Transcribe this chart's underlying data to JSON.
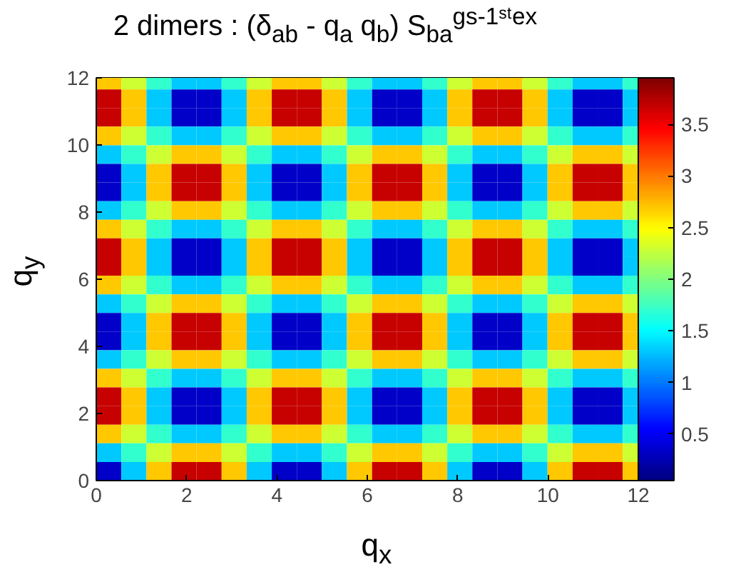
{
  "chart_data": {
    "type": "heatmap",
    "title": "2 dimers : (δ$_{ab}$ - q$_{a}$ q$_{b}$) S$_{ba}$$^{gs-1ˢᵗex}$",
    "xlabel": "q$_{x}$",
    "ylabel": "q$_{y}$",
    "x": [
      0.278,
      0.833,
      1.388,
      1.943,
      2.498,
      3.053,
      3.608,
      4.163,
      4.718,
      5.273,
      5.828,
      6.383,
      6.938,
      7.493,
      8.048,
      8.603,
      9.158,
      9.713,
      10.268,
      10.823,
      11.378,
      11.933
    ],
    "y": [
      11.933,
      11.378,
      10.823,
      10.268,
      9.713,
      9.158,
      8.603,
      8.048,
      7.493,
      6.938,
      6.383,
      5.828,
      5.273,
      4.718,
      4.163,
      3.608,
      3.053,
      2.498,
      1.943,
      1.388,
      0.833,
      0.278
    ],
    "cells": [
      [
        2.69,
        2.29,
        1.71,
        1.31,
        1.31,
        1.71,
        2.29,
        2.69,
        2.69,
        2.29,
        1.71,
        1.31,
        1.31,
        1.71,
        2.29,
        2.69,
        2.69,
        2.29,
        1.71,
        1.31,
        1.31,
        1.71
      ],
      [
        3.67,
        2.69,
        1.31,
        0.33,
        0.33,
        1.31,
        2.69,
        3.67,
        3.67,
        2.69,
        1.31,
        0.33,
        0.33,
        1.31,
        2.69,
        3.67,
        3.67,
        2.69,
        1.31,
        0.33,
        0.33,
        1.31
      ],
      [
        3.67,
        2.69,
        1.31,
        0.33,
        0.33,
        1.31,
        2.69,
        3.67,
        3.67,
        2.69,
        1.31,
        0.33,
        0.33,
        1.31,
        2.69,
        3.67,
        3.67,
        2.69,
        1.31,
        0.33,
        0.33,
        1.31
      ],
      [
        2.69,
        2.29,
        1.71,
        1.31,
        1.31,
        1.71,
        2.29,
        2.69,
        2.69,
        2.29,
        1.71,
        1.31,
        1.31,
        1.71,
        2.29,
        2.69,
        2.69,
        2.29,
        1.71,
        1.31,
        1.31,
        1.71
      ],
      [
        1.31,
        1.71,
        2.29,
        2.69,
        2.69,
        2.29,
        1.71,
        1.31,
        1.31,
        1.71,
        2.29,
        2.69,
        2.69,
        2.29,
        1.71,
        1.31,
        1.31,
        1.71,
        2.29,
        2.69,
        2.69,
        2.29
      ],
      [
        0.33,
        1.31,
        2.69,
        3.67,
        3.67,
        2.69,
        1.31,
        0.33,
        0.33,
        1.31,
        2.69,
        3.67,
        3.67,
        2.69,
        1.31,
        0.33,
        0.33,
        1.31,
        2.69,
        3.67,
        3.67,
        2.69
      ],
      [
        0.33,
        1.31,
        2.69,
        3.67,
        3.67,
        2.69,
        1.31,
        0.33,
        0.33,
        1.31,
        2.69,
        3.67,
        3.67,
        2.69,
        1.31,
        0.33,
        0.33,
        1.31,
        2.69,
        3.67,
        3.67,
        2.69
      ],
      [
        1.31,
        1.71,
        2.29,
        2.69,
        2.69,
        2.29,
        1.71,
        1.31,
        1.31,
        1.71,
        2.29,
        2.69,
        2.69,
        2.29,
        1.71,
        1.31,
        1.31,
        1.71,
        2.29,
        2.69,
        2.69,
        2.29
      ],
      [
        2.69,
        2.29,
        1.71,
        1.31,
        1.31,
        1.71,
        2.29,
        2.69,
        2.69,
        2.29,
        1.71,
        1.31,
        1.31,
        1.71,
        2.29,
        2.69,
        2.69,
        2.29,
        1.71,
        1.31,
        1.31,
        1.71
      ],
      [
        3.67,
        2.69,
        1.31,
        0.33,
        0.33,
        1.31,
        2.69,
        3.67,
        3.67,
        2.69,
        1.31,
        0.33,
        0.33,
        1.31,
        2.69,
        3.67,
        3.67,
        2.69,
        1.31,
        0.33,
        0.33,
        1.31
      ],
      [
        3.67,
        2.69,
        1.31,
        0.33,
        0.33,
        1.31,
        2.69,
        3.67,
        3.67,
        2.69,
        1.31,
        0.33,
        0.33,
        1.31,
        2.69,
        3.67,
        3.67,
        2.69,
        1.31,
        0.33,
        0.33,
        1.31
      ],
      [
        2.69,
        2.29,
        1.71,
        1.31,
        1.31,
        1.71,
        2.29,
        2.69,
        2.69,
        2.29,
        1.71,
        1.31,
        1.31,
        1.71,
        2.29,
        2.69,
        2.69,
        2.29,
        1.71,
        1.31,
        1.31,
        1.71
      ],
      [
        1.31,
        1.71,
        2.29,
        2.69,
        2.69,
        2.29,
        1.71,
        1.31,
        1.31,
        1.71,
        2.29,
        2.69,
        2.69,
        2.29,
        1.71,
        1.31,
        1.31,
        1.71,
        2.29,
        2.69,
        2.69,
        2.29
      ],
      [
        0.33,
        1.31,
        2.69,
        3.67,
        3.67,
        2.69,
        1.31,
        0.33,
        0.33,
        1.31,
        2.69,
        3.67,
        3.67,
        2.69,
        1.31,
        0.33,
        0.33,
        1.31,
        2.69,
        3.67,
        3.67,
        2.69
      ],
      [
        0.33,
        1.31,
        2.69,
        3.67,
        3.67,
        2.69,
        1.31,
        0.33,
        0.33,
        1.31,
        2.69,
        3.67,
        3.67,
        2.69,
        1.31,
        0.33,
        0.33,
        1.31,
        2.69,
        3.67,
        3.67,
        2.69
      ],
      [
        1.31,
        1.71,
        2.29,
        2.69,
        2.69,
        2.29,
        1.71,
        1.31,
        1.31,
        1.71,
        2.29,
        2.69,
        2.69,
        2.29,
        1.71,
        1.31,
        1.31,
        1.71,
        2.29,
        2.69,
        2.69,
        2.29
      ],
      [
        2.69,
        2.29,
        1.71,
        1.31,
        1.31,
        1.71,
        2.29,
        2.69,
        2.69,
        2.29,
        1.71,
        1.31,
        1.31,
        1.71,
        2.29,
        2.69,
        2.69,
        2.29,
        1.71,
        1.31,
        1.31,
        1.71
      ],
      [
        3.67,
        2.69,
        1.31,
        0.33,
        0.33,
        1.31,
        2.69,
        3.67,
        3.67,
        2.69,
        1.31,
        0.33,
        0.33,
        1.31,
        2.69,
        3.67,
        3.67,
        2.69,
        1.31,
        0.33,
        0.33,
        1.31
      ],
      [
        3.67,
        2.69,
        1.31,
        0.33,
        0.33,
        1.31,
        2.69,
        3.67,
        3.67,
        2.69,
        1.31,
        0.33,
        0.33,
        1.31,
        2.69,
        3.67,
        3.67,
        2.69,
        1.31,
        0.33,
        0.33,
        1.31
      ],
      [
        2.69,
        2.29,
        1.71,
        1.31,
        1.31,
        1.71,
        2.29,
        2.69,
        2.69,
        2.29,
        1.71,
        1.31,
        1.31,
        1.71,
        2.29,
        2.69,
        2.69,
        2.29,
        1.71,
        1.31,
        1.31,
        1.71
      ],
      [
        1.31,
        1.71,
        2.29,
        2.69,
        2.69,
        2.29,
        1.71,
        1.31,
        1.31,
        1.71,
        2.29,
        2.69,
        2.69,
        2.29,
        1.71,
        1.31,
        1.31,
        1.71,
        2.29,
        2.69,
        2.69,
        2.29
      ],
      [
        0.33,
        1.31,
        2.69,
        3.67,
        3.67,
        2.69,
        1.31,
        0.33,
        0.33,
        1.31,
        2.69,
        3.67,
        3.67,
        2.69,
        1.31,
        0.33,
        0.33,
        1.31,
        2.69,
        3.67,
        3.67,
        2.69
      ]
    ],
    "clim": [
      0.05,
      3.95
    ],
    "cticks": [
      0.5,
      1,
      1.5,
      2,
      2.5,
      3,
      3.5
    ],
    "xlim": [
      0,
      12
    ],
    "ylim": [
      0,
      12
    ],
    "xticks": [
      0,
      2,
      4,
      6,
      8,
      10,
      12
    ],
    "yticks": [
      0,
      2,
      4,
      6,
      8,
      10,
      12
    ]
  }
}
